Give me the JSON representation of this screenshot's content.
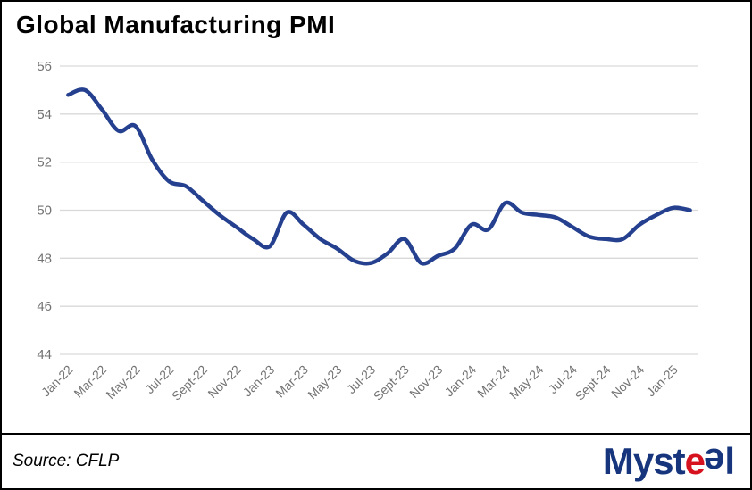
{
  "title": "Global Manufacturing PMI",
  "footer": {
    "source_label": "Source: CFLP"
  },
  "logo": {
    "part1": "Myst",
    "part2": "e",
    "part3": "e",
    "part4": "l",
    "blue": "#16357d",
    "red": "#d6121f"
  },
  "chart_data": {
    "type": "line",
    "title": "Global Manufacturing PMI",
    "x": [
      "Jan-22",
      "Feb-22",
      "Mar-22",
      "Apr-22",
      "May-22",
      "Jun-22",
      "Jul-22",
      "Aug-22",
      "Sept-22",
      "Oct-22",
      "Nov-22",
      "Dec-22",
      "Jan-23",
      "Feb-23",
      "Mar-23",
      "Apr-23",
      "May-23",
      "Jun-23",
      "Jul-23",
      "Aug-23",
      "Sept-23",
      "Oct-23",
      "Nov-23",
      "Dec-23",
      "Jan-24",
      "Feb-24",
      "Mar-24",
      "Apr-24",
      "May-24",
      "Jun-24",
      "Jul-24",
      "Aug-24",
      "Sept-24",
      "Oct-24",
      "Nov-24",
      "Dec-24",
      "Jan-25",
      "Feb-25"
    ],
    "values": [
      54.8,
      55.0,
      54.2,
      53.3,
      53.5,
      52.1,
      51.2,
      51.0,
      50.4,
      49.8,
      49.3,
      48.8,
      48.5,
      49.9,
      49.4,
      48.8,
      48.4,
      47.9,
      47.8,
      48.2,
      48.8,
      47.8,
      48.1,
      48.4,
      49.4,
      49.2,
      50.3,
      49.9,
      49.8,
      49.7,
      49.3,
      48.9,
      48.8,
      48.8,
      49.4,
      49.8,
      50.1,
      50.0
    ],
    "x_tick_labels": [
      "Jan-22",
      "Mar-22",
      "May-22",
      "Jul-22",
      "Sept-22",
      "Nov-22",
      "Jan-23",
      "Mar-23",
      "May-23",
      "Jul-23",
      "Sept-23",
      "Nov-23",
      "Jan-24",
      "Mar-24",
      "May-24",
      "Jul-24",
      "Sept-24",
      "Nov-24",
      "Jan-25"
    ],
    "x_tick_every": 2,
    "yticks": [
      44,
      46,
      48,
      50,
      52,
      54,
      56
    ],
    "ylim": [
      44,
      56
    ],
    "grid": true,
    "legend_position": "none",
    "line_color": "#24408f",
    "grid_color": "#d9d9d9",
    "tick_label_color": "#737373",
    "source": "CFLP"
  }
}
